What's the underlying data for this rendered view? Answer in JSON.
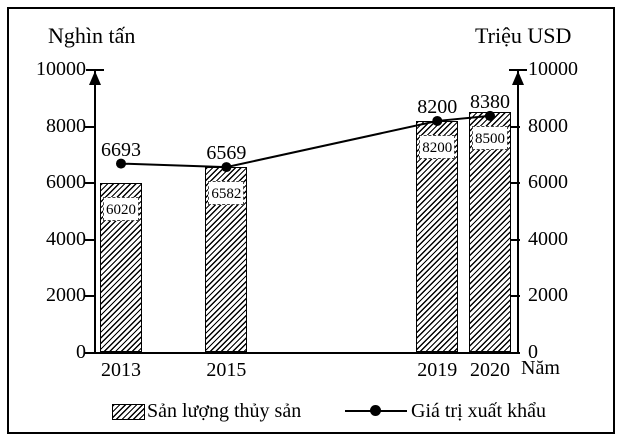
{
  "chart_data": {
    "type": "combo-bar-line",
    "x": [
      2013,
      2015,
      2019,
      2020
    ],
    "categories": [
      "2013",
      "2015",
      "2019",
      "2020"
    ],
    "series": [
      {
        "name": "Sản lượng thủy sản",
        "chart": "bar",
        "axis": "left",
        "values": [
          6020,
          6582,
          8200,
          8500
        ]
      },
      {
        "name": "Giá trị xuất khẩu",
        "chart": "line",
        "axis": "right",
        "values": [
          6693,
          6569,
          8200,
          8380
        ]
      }
    ],
    "left_axis": {
      "title": "Nghìn tấn",
      "min": 0,
      "max": 10000,
      "tick_step": 2000,
      "ticks": [
        0,
        2000,
        4000,
        6000,
        8000,
        10000
      ]
    },
    "right_axis": {
      "title": "Triệu USD",
      "min": 0,
      "max": 10000,
      "tick_step": 2000,
      "ticks": [
        0,
        2000,
        4000,
        6000,
        8000,
        10000
      ]
    },
    "xlabel": "Năm",
    "show_data_labels": true,
    "bar_value_labels": [
      6020,
      6582,
      8200,
      8500
    ],
    "point_value_labels": [
      6693,
      6569,
      8200,
      8380
    ],
    "legend_position": "bottom",
    "grid": false,
    "colors": {
      "foreground": "#000000",
      "background": "#ffffff",
      "hatch": "diagonal-up"
    }
  }
}
